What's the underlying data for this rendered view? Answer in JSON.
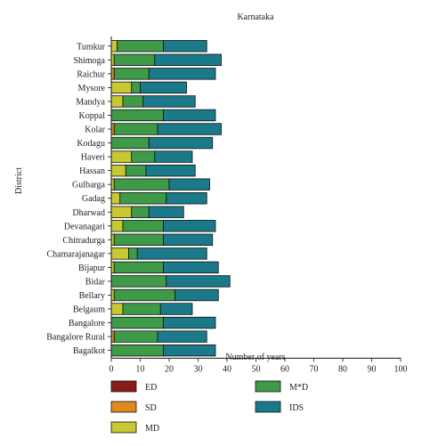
{
  "chart_data": {
    "type": "bar",
    "orientation": "horizontal",
    "stacked": true,
    "title": "Karnataka",
    "xlabel": "Number of years",
    "ylabel": "District",
    "xlim": [
      0,
      100
    ],
    "xticks": [
      0,
      10,
      20,
      30,
      40,
      50,
      60,
      70,
      80,
      90,
      100
    ],
    "grid": false,
    "legend_position": "bottom",
    "categories": [
      "Tumkur",
      "Shimoga",
      "Raichur",
      "Mysore",
      "Mandya",
      "Koppal",
      "Kolar",
      "Kodagu",
      "Haveri",
      "Hassan",
      "Gulbarga",
      "Gadag",
      "Dharwad",
      "Devanagari",
      "Chitradurga",
      "Chamarajanagar",
      "Bijapur",
      "Bidar",
      "Bellary",
      "Belgaum",
      "Bangalore",
      "Bangalore Rural",
      "Bagalkot"
    ],
    "series": [
      {
        "name": "ED",
        "color": "#8b1a1a",
        "values": [
          0,
          0,
          0,
          0,
          0,
          0,
          0,
          0,
          0,
          0,
          0,
          0,
          0,
          0,
          0,
          0,
          0,
          0,
          0,
          0,
          0,
          0,
          0
        ]
      },
      {
        "name": "SD",
        "color": "#e08a1e",
        "values": [
          0,
          0,
          1,
          0,
          0,
          0,
          1,
          0,
          0,
          0,
          0,
          0,
          0,
          0,
          0,
          0,
          0,
          0,
          0,
          0,
          0,
          1,
          0
        ]
      },
      {
        "name": "MD",
        "color": "#c8c832",
        "values": [
          2,
          1,
          0,
          7,
          4,
          0,
          0,
          0,
          7,
          5,
          1,
          3,
          7,
          4,
          1,
          6,
          1,
          0,
          1,
          4,
          0,
          0,
          0
        ]
      },
      {
        "name": "M*D",
        "color": "#3f9a48",
        "values": [
          16,
          14,
          12,
          3,
          7,
          18,
          15,
          13,
          8,
          7,
          19,
          16,
          6,
          14,
          17,
          3,
          17,
          19,
          21,
          13,
          18,
          15,
          18
        ]
      },
      {
        "name": "IDS",
        "color": "#1a7a8a",
        "values": [
          15,
          23,
          23,
          16,
          18,
          18,
          22,
          22,
          13,
          17,
          14,
          14,
          12,
          18,
          17,
          24,
          19,
          22,
          15,
          11,
          18,
          17,
          18
        ]
      }
    ]
  }
}
